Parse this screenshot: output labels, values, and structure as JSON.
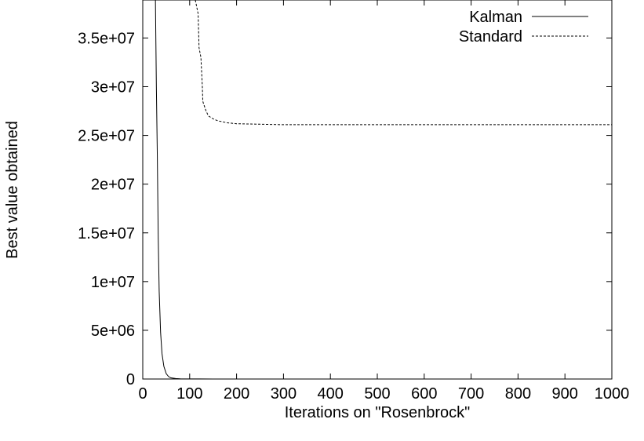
{
  "chart_data": {
    "type": "line",
    "title": "",
    "xlabel": "Iterations on \"Rosenbrock\"",
    "ylabel": "Best value obtained",
    "xlim": [
      0,
      1000
    ],
    "ylim": [
      0,
      38900000
    ],
    "x_ticks": [
      0,
      100,
      200,
      300,
      400,
      500,
      600,
      700,
      800,
      900,
      1000
    ],
    "x_tick_labels": [
      "0",
      "100",
      "200",
      "300",
      "400",
      "500",
      "600",
      "700",
      "800",
      "900",
      "1000"
    ],
    "y_ticks": [
      0,
      5000000,
      10000000,
      15000000,
      20000000,
      25000000,
      30000000,
      35000000
    ],
    "y_tick_labels": [
      "0",
      "5e+06",
      "1e+07",
      "1.5e+07",
      "2e+07",
      "2.5e+07",
      "3e+07",
      "3.5e+07"
    ],
    "grid": false,
    "legend_position": "top-right",
    "series": [
      {
        "name": "Kalman",
        "style": "solid",
        "color": "#000000",
        "x": [
          27,
          29,
          31,
          33,
          35,
          38,
          41,
          45,
          50,
          55,
          60,
          70,
          80,
          100,
          150,
          200,
          400,
          600,
          800,
          1000
        ],
        "y": [
          38900000,
          30000000,
          23000000,
          14500000,
          9000000,
          4800000,
          2600000,
          1300000,
          550000,
          250000,
          120000,
          50000,
          20000,
          8000,
          3000,
          1000,
          0,
          0,
          0,
          0
        ]
      },
      {
        "name": "Standard",
        "style": "dashed",
        "color": "#000000",
        "x": [
          112,
          118,
          120,
          124,
          127,
          128,
          130,
          135,
          140,
          150,
          160,
          180,
          200,
          250,
          300,
          400,
          500,
          600,
          700,
          800,
          900,
          1000
        ],
        "y": [
          38900000,
          37500000,
          34000000,
          33000000,
          30000000,
          28500000,
          28200000,
          27500000,
          27000000,
          26700000,
          26500000,
          26300000,
          26200000,
          26150000,
          26100000,
          26100000,
          26100000,
          26100000,
          26100000,
          26100000,
          26100000,
          26100000
        ]
      }
    ]
  }
}
